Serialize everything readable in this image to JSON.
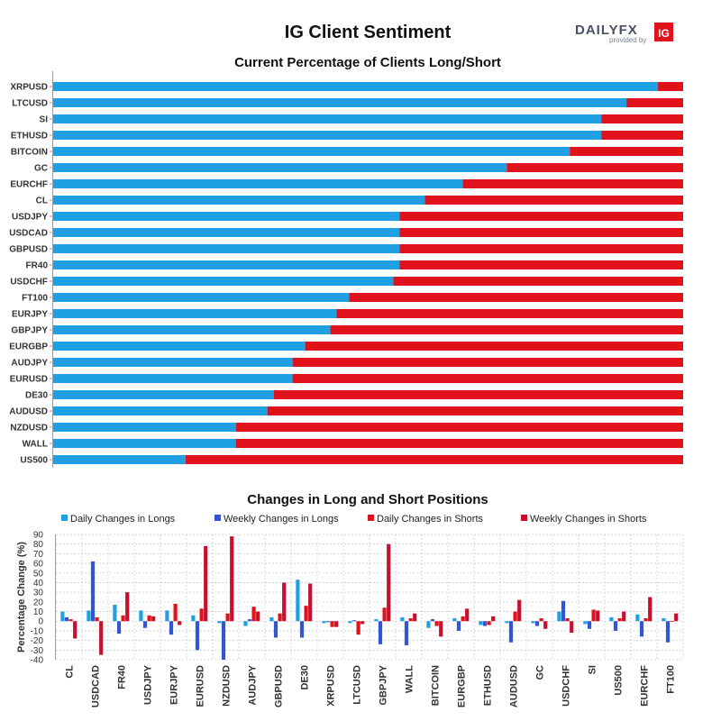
{
  "page": {
    "title": "IG Client Sentiment",
    "logo": {
      "brand_text": "DAILYFX",
      "tagline": "provided by",
      "badge": "IG"
    }
  },
  "colors": {
    "long": "#1fa0e3",
    "short": "#e0121b",
    "daily_long": "#1fa0e3",
    "weekly_long": "#3355d4",
    "daily_short": "#e0121b",
    "weekly_short": "#c8102e"
  },
  "chart_data": [
    {
      "type": "bar",
      "orientation": "horizontal",
      "stacked": true,
      "title": "Current Percentage of Clients Long/Short",
      "categories": [
        "XRPUSD",
        "LTCUSD",
        "SI",
        "ETHUSD",
        "BITCOIN",
        "GC",
        "EURCHF",
        "CL",
        "USDJPY",
        "USDCAD",
        "GBPUSD",
        "FR40",
        "USDCHF",
        "FT100",
        "EURJPY",
        "GBPJPY",
        "EURGBP",
        "AUDJPY",
        "EURUSD",
        "DE30",
        "AUDUSD",
        "NZDUSD",
        "WALL",
        "US500"
      ],
      "series": [
        {
          "values": [
            96,
            91,
            87,
            87,
            82,
            72,
            65,
            59,
            55,
            55,
            55,
            55,
            54,
            47,
            45,
            44,
            40,
            38,
            38,
            35,
            34,
            29,
            29,
            21
          ]
        },
        {
          "values": [
            4,
            9,
            13,
            13,
            18,
            28,
            35,
            41,
            45,
            45,
            45,
            45,
            46,
            53,
            55,
            56,
            60,
            62,
            62,
            65,
            66,
            71,
            71,
            79
          ]
        }
      ],
      "xlim": [
        0,
        100
      ],
      "legend": "none"
    },
    {
      "type": "bar",
      "title": "Changes in Long and Short Positions",
      "ylabel": "Percentage Change (%)",
      "ylim": [
        -40,
        90
      ],
      "yticks": [
        -40,
        -30,
        -20,
        -10,
        0,
        10,
        20,
        30,
        40,
        50,
        60,
        70,
        80,
        90
      ],
      "grid": true,
      "legend": "top",
      "categories": [
        "CL",
        "USDCAD",
        "FR40",
        "USDJPY",
        "EURJPY",
        "EURUSD",
        "NZDUSD",
        "AUDJPY",
        "GBPUSD",
        "DE30",
        "XRPUSD",
        "LTCUSD",
        "GBPJPY",
        "WALL",
        "BITCOIN",
        "EURGBP",
        "ETHUSD",
        "AUDUSD",
        "GC",
        "USDCHF",
        "SI",
        "US500",
        "EURCHF",
        "FT100"
      ],
      "series": [
        {
          "name": "Daily Changes in Longs",
          "values": [
            10,
            11,
            17,
            11,
            11,
            6,
            -2,
            -5,
            4,
            43,
            -2,
            -2,
            2,
            4,
            -7,
            3,
            -4,
            -2,
            -2,
            10,
            -3,
            4,
            7,
            3
          ]
        },
        {
          "name": "Weekly Changes in Longs",
          "values": [
            4,
            62,
            -13,
            -7,
            -14,
            -30,
            -40,
            2,
            -17,
            -17,
            -1,
            1,
            -24,
            -25,
            2,
            -10,
            -5,
            -22,
            -5,
            21,
            -8,
            -10,
            -16,
            -22
          ]
        },
        {
          "name": "Daily Changes in Shorts",
          "values": [
            2,
            4,
            6,
            6,
            18,
            13,
            8,
            15,
            8,
            16,
            -6,
            -14,
            14,
            3,
            -5,
            5,
            -4,
            10,
            3,
            3,
            12,
            3,
            3,
            0
          ]
        },
        {
          "name": "Weekly Changes in Shorts",
          "values": [
            -18,
            -35,
            30,
            5,
            -4,
            78,
            88,
            10,
            40,
            39,
            -6,
            -3,
            80,
            8,
            -16,
            13,
            5,
            22,
            -8,
            -12,
            11,
            10,
            25,
            8
          ]
        }
      ]
    }
  ]
}
